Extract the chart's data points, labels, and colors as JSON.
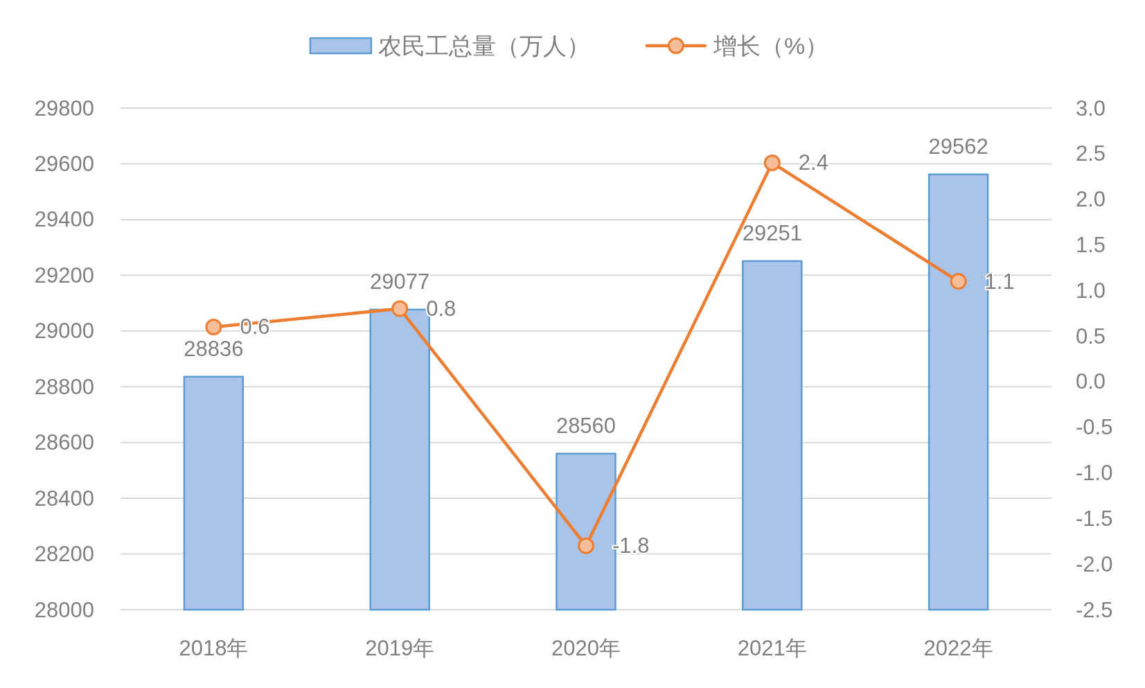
{
  "chart_data": {
    "type": "bar",
    "categories": [
      "2018年",
      "2019年",
      "2020年",
      "2021年",
      "2022年"
    ],
    "series": [
      {
        "name": "农民工总量（万人）",
        "color": "#a9c4e8",
        "values": [
          28836,
          29077,
          28560,
          29251,
          29562
        ]
      },
      {
        "name": "增长（%）",
        "type": "line",
        "axis": "y2",
        "color": "#ed7d31",
        "values": [
          0.6,
          0.8,
          -1.8,
          2.4,
          1.1
        ]
      }
    ],
    "ylim": [
      28000,
      29800
    ],
    "yticks": [
      28000,
      28200,
      28400,
      28600,
      28800,
      29000,
      29200,
      29400,
      29600,
      29800
    ],
    "y2lim": [
      -2.5,
      3.0
    ],
    "y2ticks": [
      -2.5,
      {
        "value": -2.0,
        "label": "-2.0"
      },
      -1.5,
      {
        "value": -1.0,
        "label": "-1.0"
      },
      -0.5,
      {
        "value": 0.0,
        "label": "0.0"
      },
      0.5,
      {
        "value": 1.0,
        "label": "1.0"
      },
      1.5,
      {
        "value": 2.0,
        "label": "2.0"
      },
      2.5,
      {
        "value": 3.0,
        "label": "3.0"
      }
    ],
    "grid": "y",
    "legend": "top",
    "data_labels": true,
    "marker": "circle",
    "line_style": "solid"
  }
}
